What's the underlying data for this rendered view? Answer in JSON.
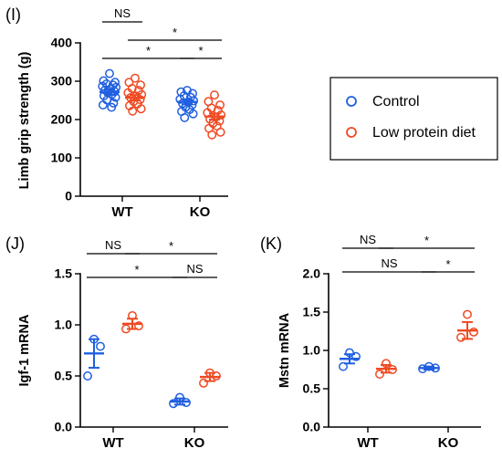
{
  "colors": {
    "control": "#1f5fe0",
    "low_protein": "#ef4a23"
  },
  "legend": {
    "items": [
      {
        "label": "Control",
        "color": "#1f5fe0"
      },
      {
        "label": "Low protein diet",
        "color": "#ef4a23"
      }
    ]
  },
  "chart_data": [
    {
      "type": "scatter",
      "panel": "(I)",
      "ylabel": "Limb grip strength (g)",
      "ylim": [
        0,
        400
      ],
      "yticks": [
        0,
        100,
        200,
        300,
        400
      ],
      "categories": [
        "WT",
        "KO"
      ],
      "series": [
        {
          "name": "Control",
          "color": "#1f5fe0",
          "groups": [
            {
              "category": "WT",
              "mean": 272,
              "sem": 7,
              "points": [
                320,
                301,
                297,
                293,
                290,
                287,
                284,
                280,
                277,
                273,
                270,
                266,
                262,
                258,
                251,
                243,
                238,
                232
              ]
            },
            {
              "category": "KO",
              "mean": 246,
              "sem": 6,
              "points": [
                276,
                272,
                268,
                262,
                258,
                253,
                249,
                246,
                242,
                238,
                232,
                226,
                221,
                215,
                205
              ]
            }
          ]
        },
        {
          "name": "Low protein diet",
          "color": "#ef4a23",
          "groups": [
            {
              "category": "WT",
              "mean": 257,
              "sem": 7,
              "points": [
                308,
                297,
                290,
                281,
                276,
                270,
                265,
                261,
                257,
                252,
                247,
                241,
                236,
                228,
                222
              ]
            },
            {
              "category": "KO",
              "mean": 208,
              "sem": 8,
              "points": [
                264,
                247,
                238,
                230,
                224,
                218,
                212,
                206,
                201,
                196,
                190,
                183,
                177,
                167,
                160
              ]
            }
          ]
        }
      ],
      "annotations": [
        {
          "text": "NS",
          "from": "WT-Control",
          "to": "WT-Low protein diet",
          "level": 2
        },
        {
          "text": "*",
          "from": "WT-Low protein diet",
          "to": "KO-Low protein diet",
          "level": 1
        },
        {
          "text": "*",
          "from": "WT-Control",
          "to": "KO-Control",
          "level": 0
        },
        {
          "text": "*",
          "from": "KO-Control",
          "to": "KO-Low protein diet",
          "level": 0
        }
      ]
    },
    {
      "type": "scatter",
      "panel": "(J)",
      "ylabel": "Igf-1 mRNA",
      "ylim": [
        0,
        1.5
      ],
      "yticks": [
        0.0,
        0.5,
        1.0,
        1.5
      ],
      "categories": [
        "WT",
        "KO"
      ],
      "series": [
        {
          "name": "Control",
          "color": "#1f5fe0",
          "groups": [
            {
              "category": "WT",
              "mean": 0.72,
              "sem": 0.14,
              "points": [
                0.86,
                0.79,
                0.5
              ]
            },
            {
              "category": "KO",
              "mean": 0.25,
              "sem": 0.03,
              "points": [
                0.29,
                0.24,
                0.23
              ]
            }
          ]
        },
        {
          "name": "Low protein diet",
          "color": "#ef4a23",
          "groups": [
            {
              "category": "WT",
              "mean": 1.01,
              "sem": 0.05,
              "points": [
                1.09,
                0.99,
                0.96
              ]
            },
            {
              "category": "KO",
              "mean": 0.49,
              "sem": 0.04,
              "points": [
                0.53,
                0.5,
                0.43
              ]
            }
          ]
        }
      ],
      "annotations": [
        {
          "text": "NS",
          "from": "WT-Control",
          "to": "WT-Low protein diet",
          "level": 2
        },
        {
          "text": "*",
          "from": "WT-Low protein diet",
          "to": "KO-Low protein diet",
          "level": 2
        },
        {
          "text": "*",
          "from": "WT-Control",
          "to": "KO-Control",
          "level": 1
        },
        {
          "text": "NS",
          "from": "KO-Control",
          "to": "KO-Low protein diet",
          "level": 1
        }
      ]
    },
    {
      "type": "scatter",
      "panel": "(K)",
      "ylabel": "Mstn mRNA",
      "ylim": [
        0,
        2.0
      ],
      "yticks": [
        0.0,
        0.5,
        1.0,
        1.5,
        2.0
      ],
      "categories": [
        "WT",
        "KO"
      ],
      "series": [
        {
          "name": "Control",
          "color": "#1f5fe0",
          "groups": [
            {
              "category": "WT",
              "mean": 0.89,
              "sem": 0.06,
              "points": [
                0.97,
                0.92,
                0.79
              ]
            },
            {
              "category": "KO",
              "mean": 0.77,
              "sem": 0.02,
              "points": [
                0.79,
                0.77,
                0.76
              ]
            }
          ]
        },
        {
          "name": "Low protein diet",
          "color": "#ef4a23",
          "groups": [
            {
              "category": "WT",
              "mean": 0.76,
              "sem": 0.05,
              "points": [
                0.83,
                0.75,
                0.69
              ]
            },
            {
              "category": "KO",
              "mean": 1.26,
              "sem": 0.11,
              "points": [
                1.47,
                1.24,
                1.17
              ]
            }
          ]
        }
      ],
      "annotations": [
        {
          "text": "NS",
          "from": "WT-Control",
          "to": "WT-Low protein diet",
          "level": 2
        },
        {
          "text": "*",
          "from": "WT-Low protein diet",
          "to": "KO-Low protein diet",
          "level": 2
        },
        {
          "text": "NS",
          "from": "WT-Control",
          "to": "KO-Control",
          "level": 1
        },
        {
          "text": "*",
          "from": "KO-Control",
          "to": "KO-Low protein diet",
          "level": 1
        }
      ]
    }
  ]
}
